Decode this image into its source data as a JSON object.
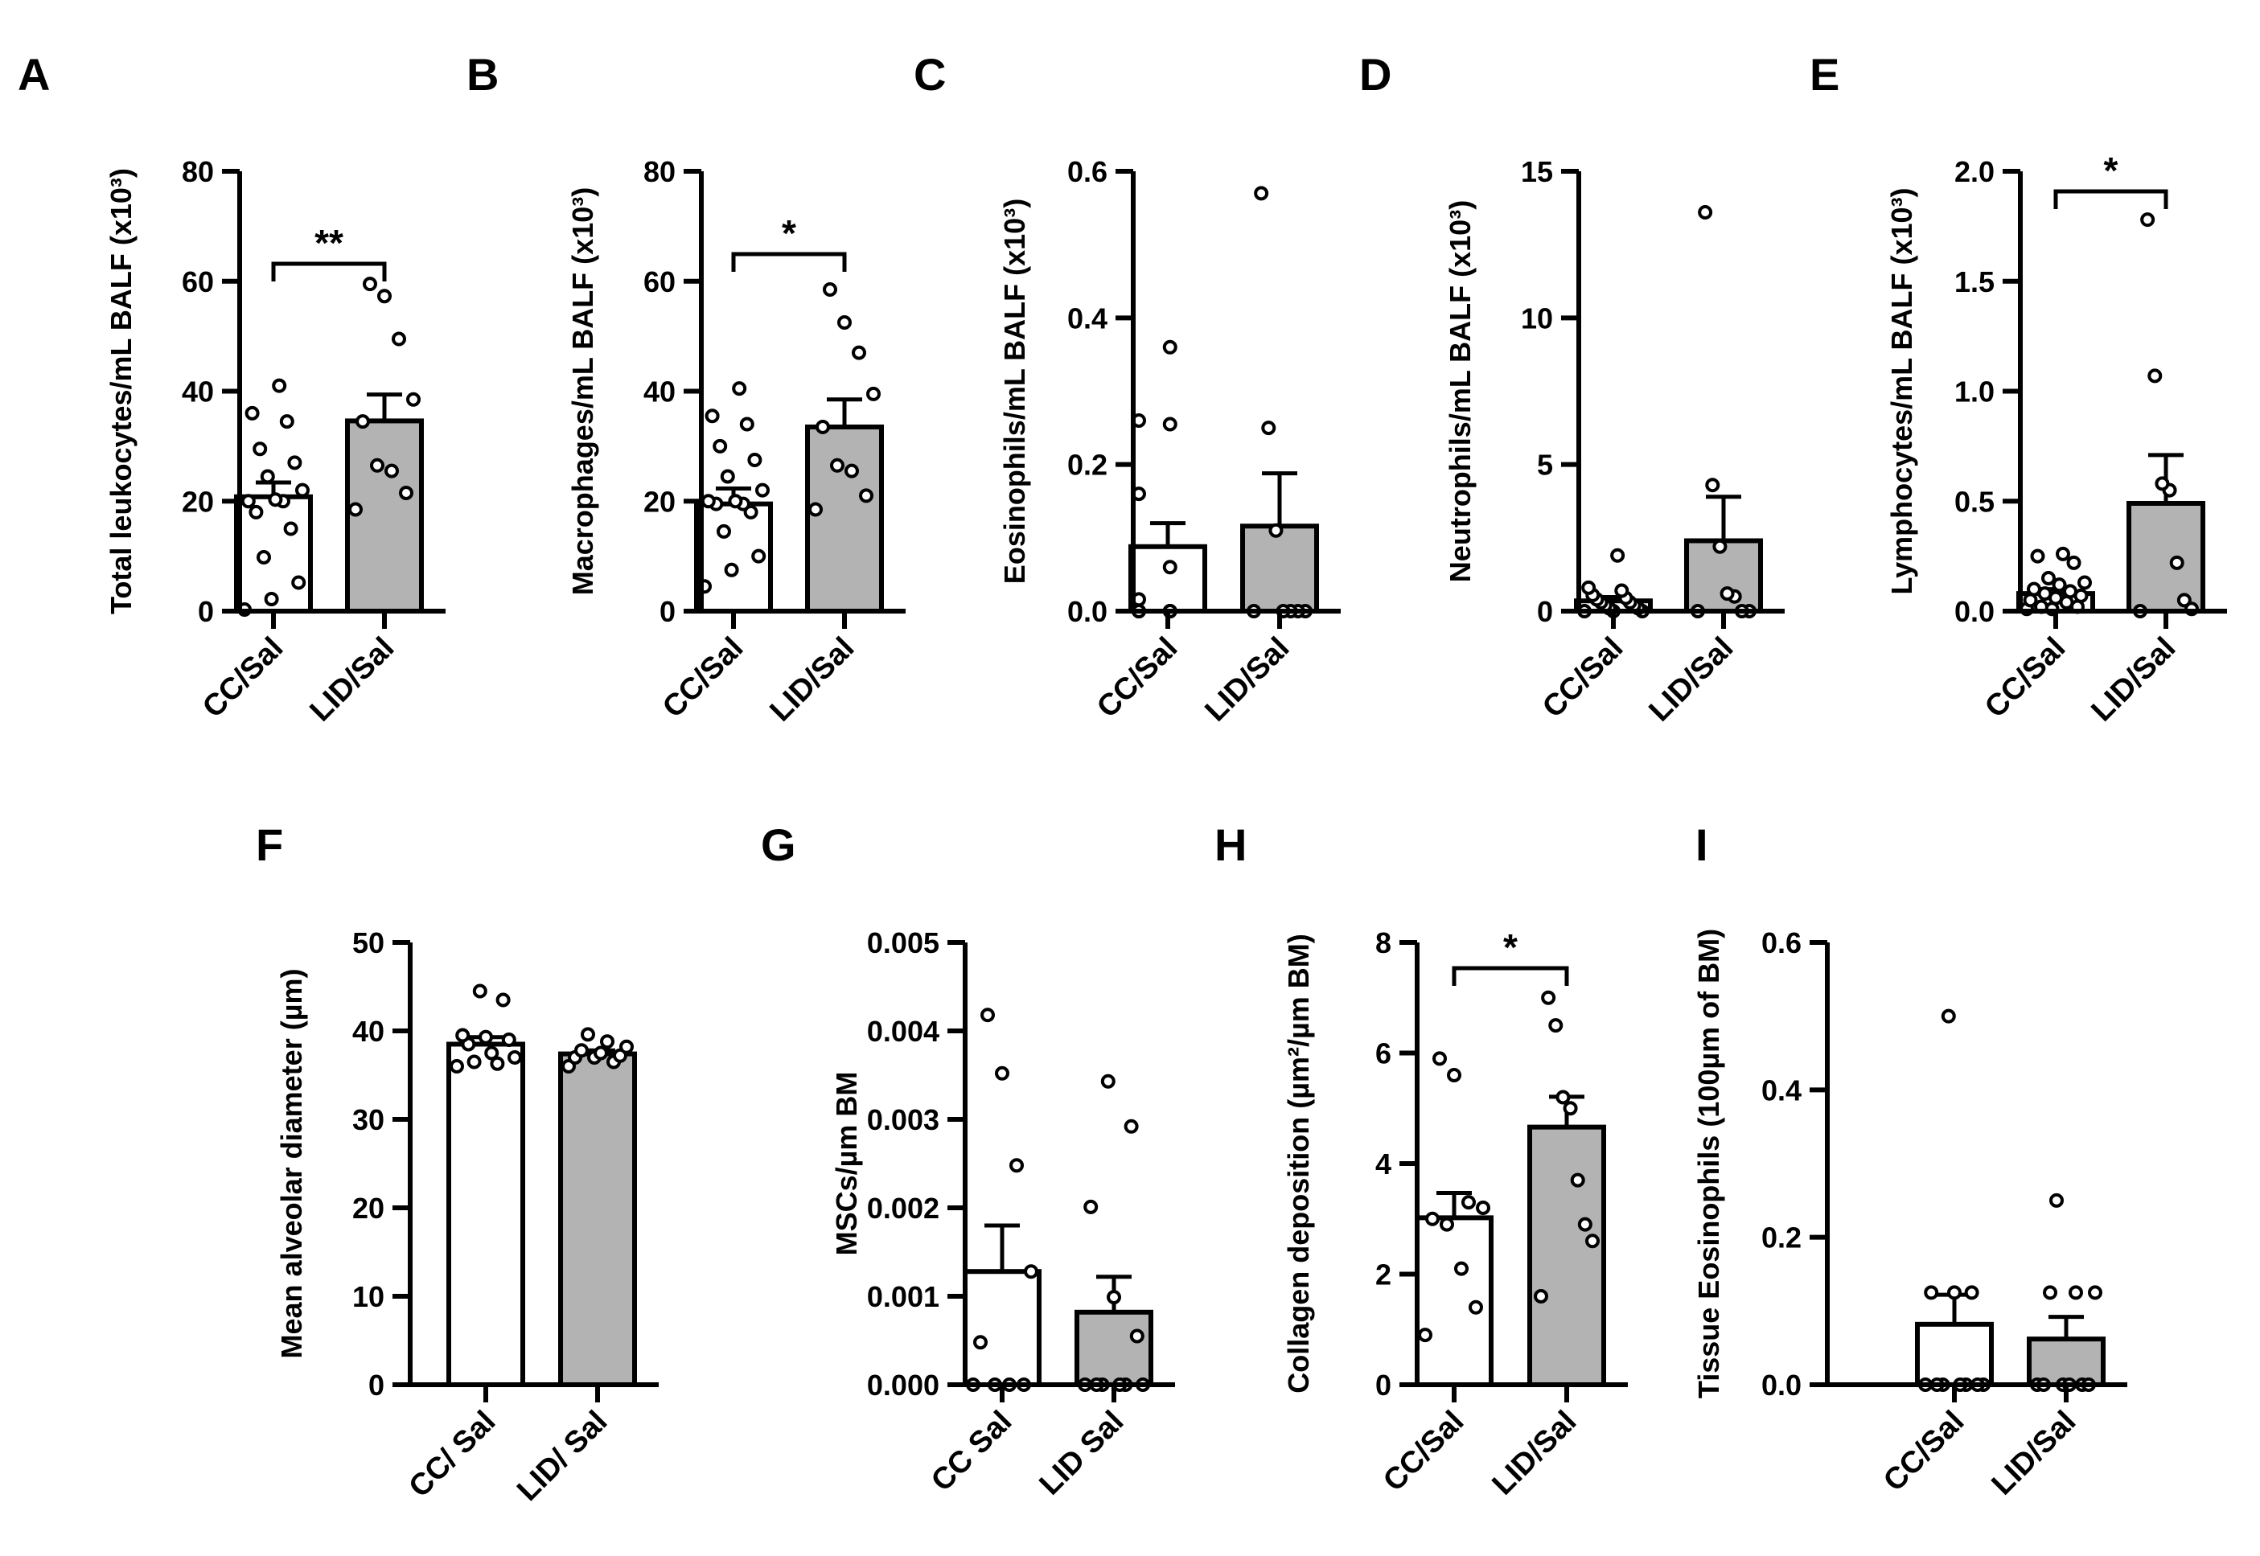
{
  "figure_type": "multi-panel bar charts with individual data points",
  "colors": {
    "control_bar": "#ffffff",
    "treatment_bar": "#b3b3b3",
    "axis": "#000000"
  },
  "chart_data": [
    {
      "id": "A",
      "type": "bar",
      "letter": "A",
      "ylabel": "Total leukocytes/mL BALF (x10³)",
      "categories": [
        "CC/Sal",
        "LID/Sal"
      ],
      "ylim": [
        0,
        80
      ],
      "yticks": [
        "0",
        "20",
        "40",
        "60",
        "80"
      ],
      "values": [
        20.8,
        34.6
      ],
      "sem": [
        2.6,
        4.8
      ],
      "points": [
        [
          0.3,
          2.2,
          5.2,
          9.8,
          15,
          18,
          20,
          20,
          20.3,
          22,
          24.5,
          27,
          29.5,
          34.5,
          36,
          41
        ],
        [
          18.5,
          21.5,
          25.5,
          26.5,
          34.5,
          38.5,
          49.5,
          57.3,
          59.5
        ]
      ],
      "significance": "**"
    },
    {
      "id": "B",
      "type": "bar",
      "letter": "B",
      "ylabel": "Macrophages/mL BALF (x10³)",
      "categories": [
        "CC/Sal",
        "LID/Sal"
      ],
      "ylim": [
        0,
        80
      ],
      "yticks": [
        "0",
        "20",
        "40",
        "60",
        "80"
      ],
      "values": [
        19.5,
        33.5
      ],
      "sem": [
        2.8,
        5.0
      ],
      "points": [
        [
          4.5,
          7.5,
          10,
          14.5,
          18,
          19.5,
          19.5,
          20,
          20,
          22,
          24.5,
          27.5,
          30,
          34,
          35.5,
          40.5
        ],
        [
          18.5,
          21,
          25.5,
          26.5,
          33.5,
          39.5,
          47,
          52.5,
          58.5
        ]
      ],
      "significance": "*"
    },
    {
      "id": "C",
      "type": "bar",
      "letter": "C",
      "ylabel": "Eosinophils/mL BALF (x10³)",
      "categories": [
        "CC/Sal",
        "LID/Sal"
      ],
      "ylim": [
        0,
        0.6
      ],
      "yticks": [
        "0.0",
        "0.2",
        "0.4",
        "0.6"
      ],
      "values": [
        0.088,
        0.116
      ],
      "sem": [
        0.032,
        0.072
      ],
      "points": [
        [
          0,
          0,
          0,
          0,
          0,
          0,
          0,
          0,
          0.016,
          0.06,
          0.16,
          0.255,
          0.26,
          0.36
        ],
        [
          0,
          0,
          0,
          0,
          0,
          0.11,
          0.25,
          0.57
        ]
      ],
      "significance": ""
    },
    {
      "id": "D",
      "type": "bar",
      "letter": "D",
      "ylabel": "Neutrophils/mL BALF (x10³)",
      "categories": [
        "CC/Sal",
        "LID/Sal"
      ],
      "ylim": [
        0,
        15
      ],
      "yticks": [
        "0",
        "5",
        "10",
        "15"
      ],
      "values": [
        0.35,
        2.4
      ],
      "sem": [
        0.13,
        1.5
      ],
      "points": [
        [
          0,
          0,
          0,
          0.1,
          0.1,
          0.2,
          0.2,
          0.3,
          0.3,
          0.4,
          0.45,
          0.55,
          0.7,
          0.8,
          1.9
        ],
        [
          0,
          0,
          0,
          0.5,
          0.6,
          2.2,
          4.3,
          13.6
        ]
      ],
      "significance": ""
    },
    {
      "id": "E",
      "type": "bar",
      "letter": "E",
      "ylabel": "Lymphocytes/mL BALF (x10³)",
      "categories": [
        "CC/Sal",
        "LID/Sal"
      ],
      "ylim": [
        0,
        2.0
      ],
      "yticks": [
        "0.0",
        "0.5",
        "1.0",
        "1.5",
        "2.0"
      ],
      "values": [
        0.08,
        0.49
      ],
      "sem": [
        0.02,
        0.22
      ],
      "points": [
        [
          0.01,
          0.01,
          0.02,
          0.02,
          0.04,
          0.05,
          0.06,
          0.07,
          0.08,
          0.09,
          0.1,
          0.12,
          0.13,
          0.15,
          0.22,
          0.25,
          0.26
        ],
        [
          0,
          0.01,
          0.05,
          0.22,
          0.55,
          0.58,
          1.07,
          1.78
        ]
      ],
      "significance": "*"
    },
    {
      "id": "F",
      "type": "bar",
      "letter": "F",
      "ylabel": "Mean alveolar diameter (µm)",
      "categories": [
        "CC/ Sal",
        "LID/ Sal"
      ],
      "ylim": [
        0,
        50
      ],
      "yticks": [
        "0",
        "10",
        "20",
        "30",
        "40",
        "50"
      ],
      "values": [
        38.5,
        37.4
      ],
      "sem": [
        0.8,
        0.4
      ],
      "points": [
        [
          36,
          36.3,
          36.5,
          37,
          37.5,
          38.5,
          39,
          39.3,
          39.5,
          43.5,
          44.5
        ],
        [
          36,
          36.5,
          37,
          37,
          37.2,
          37.5,
          37.8,
          38.2,
          38.8,
          39.6
        ]
      ],
      "significance": ""
    },
    {
      "id": "G",
      "type": "bar",
      "letter": "G",
      "ylabel": "MSCs/µm BM",
      "categories": [
        "CC Sal",
        "LID Sal"
      ],
      "ylim": [
        0,
        0.005
      ],
      "yticks": [
        "0.000",
        "0.001",
        "0.002",
        "0.003",
        "0.004",
        "0.005"
      ],
      "values": [
        0.00128,
        0.00082
      ],
      "sem": [
        0.00052,
        0.0004
      ],
      "points": [
        [
          0,
          0,
          0,
          0,
          0.00048,
          0.00128,
          0.00248,
          0.00352,
          0.00418
        ],
        [
          0,
          0,
          0,
          0,
          0,
          0,
          0.00055,
          0.00099,
          0.00201,
          0.00292,
          0.00343
        ]
      ],
      "significance": ""
    },
    {
      "id": "H",
      "type": "bar",
      "letter": "H",
      "ylabel": "Collagen deposition (µm²/µm BM)",
      "categories": [
        "CC/Sal",
        "LID/Sal"
      ],
      "ylim": [
        0,
        8
      ],
      "yticks": [
        "0",
        "2",
        "4",
        "6",
        "8"
      ],
      "values": [
        3.02,
        4.66
      ],
      "sem": [
        0.45,
        0.55
      ],
      "points": [
        [
          0.9,
          1.4,
          2.1,
          2.9,
          3.0,
          3.2,
          3.3,
          5.6,
          5.9
        ],
        [
          1.6,
          2.6,
          2.9,
          3.7,
          5.0,
          5.2,
          6.5,
          7.0
        ]
      ],
      "significance": "*"
    },
    {
      "id": "I",
      "type": "bar",
      "letter": "I",
      "ylabel": "Tissue  Eosinophils (100µm of BM)",
      "categories": [
        "CC/Sal",
        "LID/Sal"
      ],
      "ylim": [
        0,
        0.6
      ],
      "yticks": [
        "0.0",
        "0.2",
        "0.4",
        "0.6"
      ],
      "values": [
        0.082,
        0.062
      ],
      "sem": [
        0.04,
        0.03
      ],
      "points": [
        [
          0,
          0,
          0,
          0,
          0,
          0,
          0,
          0.125,
          0.125,
          0.125,
          0.5
        ],
        [
          0,
          0,
          0,
          0,
          0,
          0,
          0.125,
          0.125,
          0.125,
          0.25
        ]
      ],
      "significance": ""
    }
  ]
}
